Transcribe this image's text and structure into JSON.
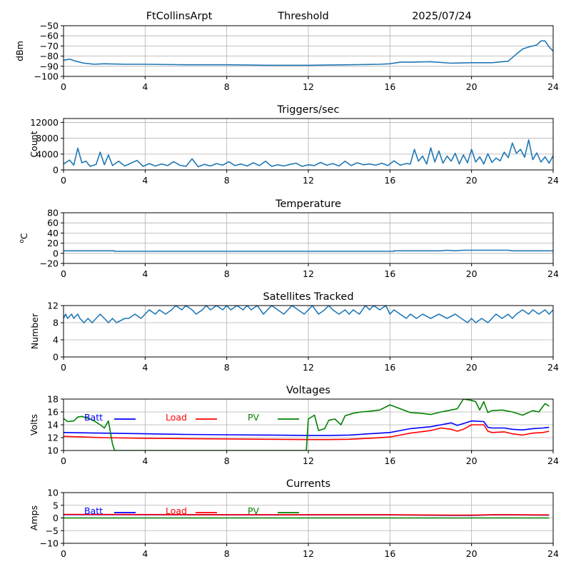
{
  "header": {
    "station": "FtCollinsArpt",
    "subtitle": "Threshold",
    "date": "2025/07/24"
  },
  "chart_data": [
    {
      "type": "line",
      "title": "",
      "xlabel": "",
      "ylabel": "dBm",
      "xlim": [
        0,
        24
      ],
      "ylim": [
        -100,
        -50
      ],
      "xticks": [
        0,
        4,
        8,
        12,
        16,
        20,
        24
      ],
      "yticks": [
        -100,
        -90,
        -80,
        -70,
        -60,
        -50
      ],
      "grid": true,
      "color": "#1f77b4",
      "series": [
        {
          "x": [
            0,
            0.3,
            0.6,
            1,
            1.5,
            2,
            3,
            4,
            6,
            8,
            10,
            12,
            14,
            15.5,
            16,
            16.5,
            17,
            18,
            19,
            20,
            21,
            21.8,
            22.2,
            22.5,
            22.8,
            23,
            23.2,
            23.4,
            23.6,
            23.8,
            24
          ],
          "y": [
            -84,
            -83,
            -85,
            -87,
            -88,
            -87.5,
            -88,
            -88,
            -88.5,
            -88.5,
            -89,
            -89,
            -88.5,
            -88,
            -87.5,
            -86,
            -86,
            -85.5,
            -87,
            -86.5,
            -86.5,
            -85,
            -78,
            -73,
            -71,
            -70,
            -69,
            -65,
            -65,
            -71,
            -75
          ]
        }
      ]
    },
    {
      "type": "line",
      "title": "Triggers/sec",
      "xlabel": "",
      "ylabel": "Count",
      "xlim": [
        0,
        24
      ],
      "ylim": [
        0,
        13000
      ],
      "xticks": [
        0,
        4,
        8,
        12,
        16,
        20,
        24
      ],
      "yticks": [
        0,
        4000,
        8000,
        12000
      ],
      "grid": true,
      "color": "#1f77b4",
      "series": [
        {
          "x": [
            0,
            0.3,
            0.5,
            0.7,
            0.9,
            1.1,
            1.3,
            1.6,
            1.8,
            2.0,
            2.2,
            2.4,
            2.7,
            3.0,
            3.3,
            3.6,
            3.9,
            4.2,
            4.5,
            4.8,
            5.1,
            5.4,
            5.7,
            6.0,
            6.3,
            6.6,
            6.9,
            7.2,
            7.5,
            7.8,
            8.1,
            8.4,
            8.7,
            9.0,
            9.3,
            9.6,
            9.9,
            10.2,
            10.5,
            10.8,
            11.1,
            11.4,
            11.7,
            12.0,
            12.3,
            12.6,
            12.9,
            13.2,
            13.5,
            13.8,
            14.1,
            14.4,
            14.7,
            15.0,
            15.3,
            15.6,
            15.9,
            16.2,
            16.5,
            16.8,
            17.0,
            17.2,
            17.4,
            17.6,
            17.8,
            18.0,
            18.2,
            18.4,
            18.6,
            18.8,
            19.0,
            19.2,
            19.4,
            19.6,
            19.8,
            20.0,
            20.2,
            20.4,
            20.6,
            20.8,
            21.0,
            21.2,
            21.4,
            21.6,
            21.8,
            22.0,
            22.2,
            22.4,
            22.6,
            22.8,
            23.0,
            23.2,
            23.4,
            23.6,
            23.8,
            24.0
          ],
          "y": [
            1500,
            2500,
            1200,
            5500,
            1800,
            2200,
            900,
            1400,
            4500,
            1300,
            3800,
            1100,
            2200,
            1000,
            1700,
            2400,
            900,
            1600,
            1000,
            1500,
            1100,
            2100,
            1200,
            900,
            2800,
            800,
            1400,
            1000,
            1600,
            1200,
            2100,
            1100,
            1500,
            1000,
            1800,
            1100,
            2200,
            900,
            1300,
            1000,
            1400,
            1700,
            900,
            1300,
            1100,
            1900,
            1200,
            1600,
            1000,
            2200,
            1100,
            1800,
            1300,
            1500,
            1200,
            1700,
            1100,
            2300,
            1200,
            1600,
            1500,
            5200,
            2200,
            3500,
            1500,
            5600,
            2000,
            4800,
            1700,
            3500,
            2200,
            4200,
            1500,
            3800,
            1800,
            5200,
            2000,
            3300,
            1500,
            4100,
            1900,
            3000,
            2300,
            4500,
            3100,
            6800,
            4200,
            5200,
            3200,
            7600,
            2600,
            4300,
            2000,
            3300,
            1700,
            3600
          ]
        }
      ]
    },
    {
      "type": "line",
      "title": "Temperature",
      "xlabel": "",
      "ylabel": "oC",
      "xlim": [
        0,
        24
      ],
      "ylim": [
        -20,
        80
      ],
      "xticks": [
        0,
        4,
        8,
        12,
        16,
        20,
        24
      ],
      "yticks": [
        -20,
        0,
        20,
        40,
        60,
        80
      ],
      "grid": true,
      "color": "#1f77b4",
      "series": [
        {
          "x": [
            0,
            2.5,
            2.5,
            16.2,
            16.2,
            18.5,
            18.8,
            19.2,
            19.6,
            21.8,
            22,
            24
          ],
          "y": [
            5,
            5,
            4,
            4,
            5,
            5,
            6,
            5,
            6,
            6,
            5,
            5
          ]
        }
      ]
    },
    {
      "type": "line",
      "title": "Satellites Tracked",
      "xlabel": "",
      "ylabel": "Number",
      "xlim": [
        0,
        24
      ],
      "ylim": [
        0,
        12
      ],
      "xticks": [
        0,
        4,
        8,
        12,
        16,
        20,
        24
      ],
      "yticks": [
        0,
        4,
        8,
        12
      ],
      "grid": true,
      "color": "#1f77b4",
      "series": [
        {
          "x": [
            0,
            0.1,
            0.2,
            0.4,
            0.5,
            0.7,
            0.8,
            1.0,
            1.2,
            1.4,
            1.6,
            1.8,
            2.0,
            2.2,
            2.4,
            2.6,
            3.0,
            3.2,
            3.5,
            3.8,
            4.0,
            4.2,
            4.5,
            4.7,
            5.0,
            5.3,
            5.5,
            5.8,
            6.0,
            6.3,
            6.5,
            6.8,
            7.0,
            7.2,
            7.5,
            7.8,
            8.0,
            8.2,
            8.5,
            8.8,
            9.0,
            9.2,
            9.5,
            9.8,
            10.0,
            10.2,
            10.5,
            10.8,
            11.0,
            11.2,
            11.5,
            11.8,
            12.0,
            12.2,
            12.5,
            12.8,
            13.0,
            13.2,
            13.5,
            13.8,
            14.0,
            14.2,
            14.5,
            14.8,
            15.0,
            15.2,
            15.5,
            15.8,
            16.0,
            16.2,
            16.5,
            16.8,
            17.0,
            17.3,
            17.6,
            18.0,
            18.4,
            18.8,
            19.2,
            19.5,
            19.8,
            20.0,
            20.2,
            20.5,
            20.8,
            21.0,
            21.2,
            21.5,
            21.8,
            22.0,
            22.2,
            22.5,
            22.8,
            23.0,
            23.3,
            23.6,
            23.8,
            24.0
          ],
          "y": [
            9,
            10,
            9,
            10,
            9,
            10,
            9,
            8,
            9,
            8,
            9,
            10,
            9,
            8,
            9,
            8,
            9,
            9,
            10,
            9,
            10,
            11,
            10,
            11,
            10,
            11,
            12,
            11,
            12,
            11,
            10,
            11,
            12,
            11,
            12,
            11,
            12,
            11,
            12,
            11,
            12,
            11,
            12,
            10,
            11,
            12,
            11,
            10,
            11,
            12,
            11,
            10,
            11,
            12,
            10,
            11,
            12,
            11,
            10,
            11,
            10,
            11,
            10,
            12,
            11,
            12,
            11,
            12,
            10,
            11,
            10,
            9,
            10,
            9,
            10,
            9,
            10,
            9,
            10,
            9,
            8,
            9,
            8,
            9,
            8,
            9,
            10,
            9,
            10,
            9,
            10,
            11,
            10,
            11,
            10,
            11,
            10,
            11
          ]
        }
      ]
    },
    {
      "type": "line",
      "title": "Voltages",
      "xlabel": "",
      "ylabel": "Volts",
      "xlim": [
        0,
        24
      ],
      "ylim": [
        10,
        18
      ],
      "xticks": [
        0,
        4,
        8,
        12,
        16,
        20,
        24
      ],
      "yticks": [
        10,
        12,
        14,
        16,
        18
      ],
      "grid": true,
      "legend_placement": "top-left, inline",
      "series": [
        {
          "name": "Batt",
          "color": "#0000ff",
          "x": [
            0,
            2,
            4,
            6,
            8,
            10,
            12,
            13,
            14,
            15,
            16,
            16.5,
            17,
            18,
            18.5,
            19,
            19.3,
            19.6,
            20,
            20.6,
            20.8,
            21,
            21.6,
            22,
            22.5,
            23,
            23.5,
            23.8
          ],
          "y": [
            12.8,
            12.7,
            12.6,
            12.5,
            12.45,
            12.4,
            12.35,
            12.35,
            12.4,
            12.6,
            12.8,
            13.1,
            13.4,
            13.7,
            14.0,
            14.3,
            13.9,
            14.2,
            14.6,
            14.5,
            13.6,
            13.5,
            13.5,
            13.3,
            13.2,
            13.4,
            13.5,
            13.6
          ]
        },
        {
          "name": "Load",
          "color": "#ff0000",
          "x": [
            0,
            2,
            4,
            6,
            8,
            10,
            12,
            13,
            14,
            15,
            16,
            16.5,
            17,
            18,
            18.5,
            19,
            19.3,
            19.6,
            20,
            20.6,
            20.8,
            21,
            21.6,
            22,
            22.5,
            23,
            23.5,
            23.8
          ],
          "y": [
            12.2,
            12.0,
            11.9,
            11.85,
            11.8,
            11.75,
            11.7,
            11.7,
            11.75,
            11.9,
            12.1,
            12.4,
            12.7,
            13.1,
            13.5,
            13.3,
            13.0,
            13.3,
            14.0,
            14.0,
            13.0,
            12.8,
            12.9,
            12.6,
            12.4,
            12.7,
            12.8,
            13.0
          ]
        },
        {
          "name": "PV",
          "color": "#008000",
          "x": [
            0,
            0.2,
            0.5,
            0.7,
            0.9,
            1.2,
            1.5,
            1.8,
            2.0,
            2.2,
            2.4,
            2.5,
            11.9,
            12.0,
            12.3,
            12.5,
            12.8,
            13.0,
            13.3,
            13.6,
            13.8,
            14.2,
            14.6,
            15.0,
            15.5,
            16.0,
            16.5,
            17.0,
            17.5,
            18.0,
            18.5,
            19.0,
            19.3,
            19.6,
            20.0,
            20.2,
            20.4,
            20.6,
            20.8,
            21.0,
            21.5,
            22.0,
            22.5,
            23.0,
            23.3,
            23.6,
            23.8
          ],
          "y": [
            15.0,
            14.5,
            14.6,
            15.2,
            15.3,
            15.0,
            14.6,
            14.0,
            13.5,
            14.6,
            11.0,
            10.0,
            10.0,
            14.9,
            15.5,
            13.1,
            13.4,
            14.7,
            14.9,
            14.0,
            15.4,
            15.8,
            16.0,
            16.1,
            16.3,
            17.1,
            16.5,
            15.9,
            15.8,
            15.6,
            16.0,
            16.3,
            16.5,
            18.0,
            17.8,
            17.6,
            16.3,
            17.6,
            15.9,
            16.2,
            16.3,
            16.0,
            15.5,
            16.2,
            16.0,
            17.3,
            16.9
          ]
        }
      ]
    },
    {
      "type": "line",
      "title": "Currents",
      "xlabel": "",
      "ylabel": "Amps",
      "xlim": [
        0,
        24
      ],
      "ylim": [
        -10,
        10
      ],
      "xticks": [
        0,
        4,
        8,
        12,
        16,
        20,
        24
      ],
      "yticks": [
        -10,
        -5,
        0,
        5,
        10
      ],
      "grid": true,
      "legend_placement": "top-left, inline",
      "series": [
        {
          "name": "Batt",
          "color": "#0000ff",
          "x": [
            0,
            8,
            16,
            19,
            20,
            21,
            22,
            23.8
          ],
          "y": [
            1.3,
            1.2,
            1.2,
            1.0,
            1.0,
            1.2,
            1.2,
            1.1
          ]
        },
        {
          "name": "Load",
          "color": "#ff0000",
          "x": [
            0,
            8,
            16,
            19,
            20,
            21,
            22,
            23.8
          ],
          "y": [
            1.4,
            1.3,
            1.3,
            1.1,
            1.1,
            1.3,
            1.3,
            1.2
          ]
        },
        {
          "name": "PV",
          "color": "#008000",
          "x": [
            0,
            23.8
          ],
          "y": [
            0,
            0
          ]
        }
      ]
    }
  ]
}
